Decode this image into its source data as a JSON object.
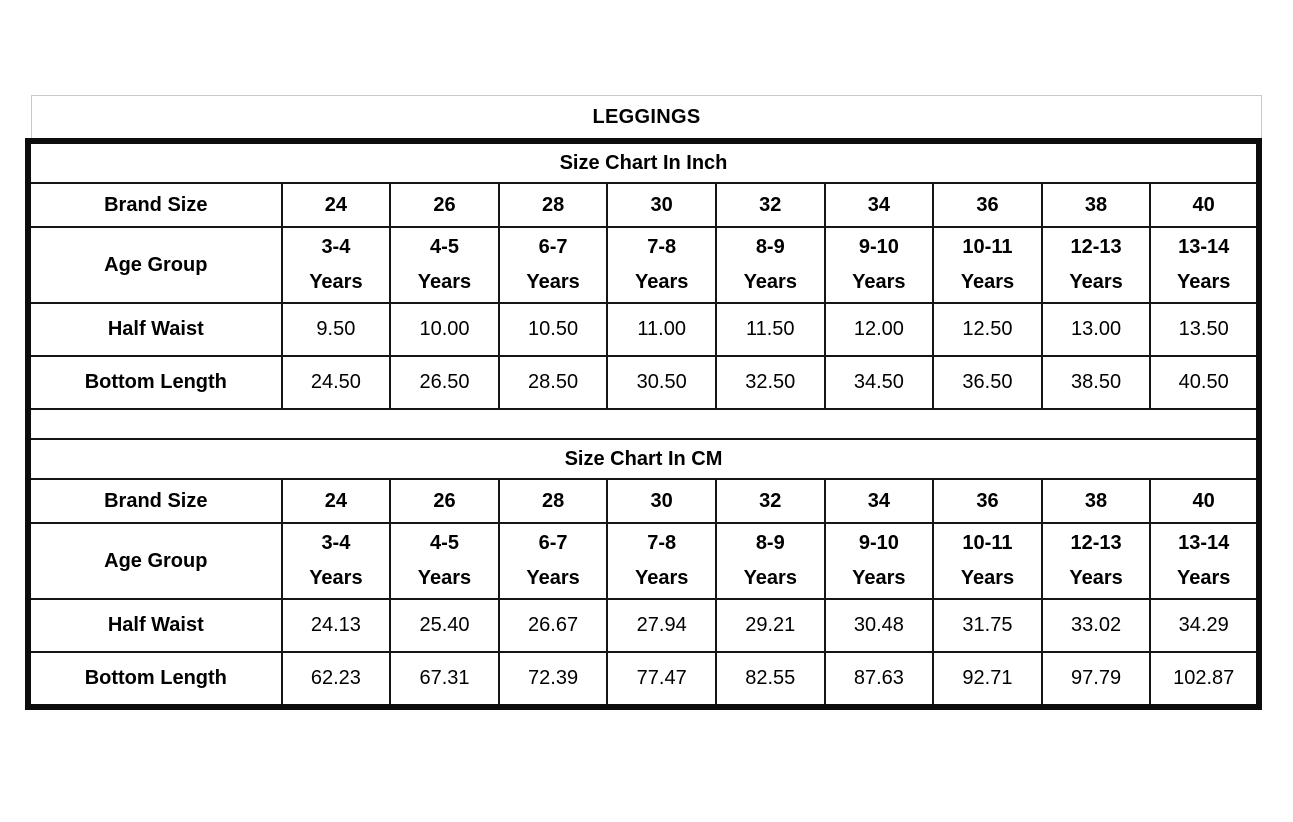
{
  "title": "LEGGINGS",
  "colors": {
    "text": "#000000",
    "thick_border": "#0d0d0d",
    "thin_border": "#151515",
    "title_border": "#c9c9c9",
    "background": "#ffffff"
  },
  "table": {
    "label_column_width_pct": 20.6,
    "sections": [
      {
        "header": "Size Chart In Inch",
        "rows": [
          {
            "key": "brand",
            "label": "Brand Size",
            "values": [
              "24",
              "26",
              "28",
              "30",
              "32",
              "34",
              "36",
              "38",
              "40"
            ]
          },
          {
            "key": "age",
            "label": "Age Group",
            "values": [
              "3-4\nYears",
              "4-5\nYears",
              "6-7\nYears",
              "7-8\nYears",
              "8-9\nYears",
              "9-10\nYears",
              "10-11\nYears",
              "12-13\nYears",
              "13-14\nYears"
            ]
          },
          {
            "key": "waist",
            "label": "Half Waist",
            "values": [
              "9.50",
              "10.00",
              "10.50",
              "11.00",
              "11.50",
              "12.00",
              "12.50",
              "13.00",
              "13.50"
            ]
          },
          {
            "key": "bottom",
            "label": "Bottom Length",
            "values": [
              "24.50",
              "26.50",
              "28.50",
              "30.50",
              "32.50",
              "34.50",
              "36.50",
              "38.50",
              "40.50"
            ]
          }
        ]
      },
      {
        "header": "Size Chart In CM",
        "rows": [
          {
            "key": "brand",
            "label": "Brand Size",
            "values": [
              "24",
              "26",
              "28",
              "30",
              "32",
              "34",
              "36",
              "38",
              "40"
            ]
          },
          {
            "key": "age",
            "label": "Age Group",
            "values": [
              "3-4\nYears",
              "4-5\nYears",
              "6-7\nYears",
              "7-8\nYears",
              "8-9\nYears",
              "9-10\nYears",
              "10-11\nYears",
              "12-13\nYears",
              "13-14\nYears"
            ]
          },
          {
            "key": "waist",
            "label": "Half Waist",
            "values": [
              "24.13",
              "25.40",
              "26.67",
              "27.94",
              "29.21",
              "30.48",
              "31.75",
              "33.02",
              "34.29"
            ]
          },
          {
            "key": "bottom",
            "label": "Bottom Length",
            "values": [
              "62.23",
              "67.31",
              "72.39",
              "77.47",
              "82.55",
              "87.63",
              "92.71",
              "97.79",
              "102.87"
            ]
          }
        ]
      }
    ]
  },
  "chart_data": [
    {
      "type": "table",
      "title": "Size Chart In Inch",
      "columns": [
        "Brand Size",
        "24",
        "26",
        "28",
        "30",
        "32",
        "34",
        "36",
        "38",
        "40"
      ],
      "age_group": [
        "3-4 Years",
        "4-5 Years",
        "6-7 Years",
        "7-8 Years",
        "8-9 Years",
        "9-10 Years",
        "10-11 Years",
        "12-13 Years",
        "13-14 Years"
      ],
      "half_waist": [
        9.5,
        10.0,
        10.5,
        11.0,
        11.5,
        12.0,
        12.5,
        13.0,
        13.5
      ],
      "bottom_length": [
        24.5,
        26.5,
        28.5,
        30.5,
        32.5,
        34.5,
        36.5,
        38.5,
        40.5
      ]
    },
    {
      "type": "table",
      "title": "Size Chart In CM",
      "columns": [
        "Brand Size",
        "24",
        "26",
        "28",
        "30",
        "32",
        "34",
        "36",
        "38",
        "40"
      ],
      "age_group": [
        "3-4 Years",
        "4-5 Years",
        "6-7 Years",
        "7-8 Years",
        "8-9 Years",
        "9-10 Years",
        "10-11 Years",
        "12-13 Years",
        "13-14 Years"
      ],
      "half_waist": [
        24.13,
        25.4,
        26.67,
        27.94,
        29.21,
        30.48,
        31.75,
        33.02,
        34.29
      ],
      "bottom_length": [
        62.23,
        67.31,
        72.39,
        77.47,
        82.55,
        87.63,
        92.71,
        97.79,
        102.87
      ]
    }
  ]
}
